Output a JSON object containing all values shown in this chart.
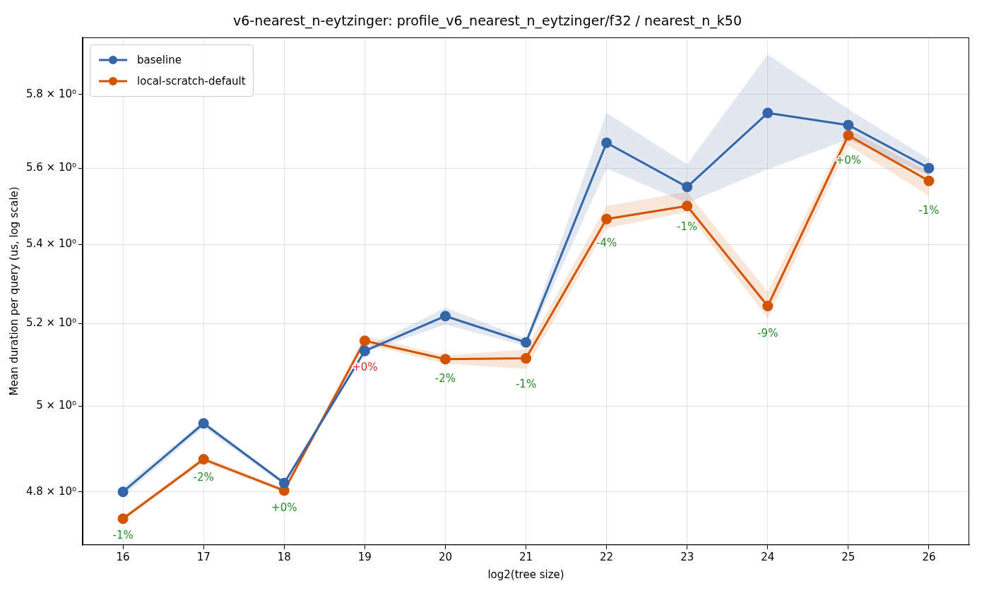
{
  "chart_data": {
    "type": "line",
    "title": "v6-nearest_n-eytzinger: profile_v6_nearest_n_eytzinger/f32 / nearest_n_k50",
    "xlabel": "log2(tree size)",
    "ylabel": "Mean duration per query (us, log scale)",
    "x": [
      16,
      17,
      18,
      19,
      20,
      21,
      22,
      23,
      24,
      25,
      26
    ],
    "series": [
      {
        "name": "baseline",
        "color": "#3465a8",
        "values": [
          4.8,
          4.959,
          4.82,
          5.133,
          5.219,
          5.154,
          5.668,
          5.55,
          5.749,
          5.716,
          5.6
        ],
        "lower": [
          4.79,
          4.95,
          4.815,
          5.13,
          5.198,
          5.145,
          5.599,
          5.508,
          5.597,
          5.677,
          5.581
        ],
        "upper": [
          4.81,
          4.965,
          4.825,
          5.14,
          5.24,
          5.163,
          5.749,
          5.61,
          5.911,
          5.759,
          5.624
        ]
      },
      {
        "name": "local-scratch-default",
        "color": "#d35400",
        "values": [
          4.739,
          4.875,
          4.803,
          5.158,
          5.113,
          5.115,
          5.466,
          5.5,
          5.244,
          5.688,
          5.566
        ],
        "lower": [
          4.735,
          4.868,
          4.798,
          5.15,
          5.102,
          5.089,
          5.442,
          5.484,
          5.213,
          5.661,
          5.527
        ],
        "upper": [
          4.745,
          4.882,
          4.808,
          5.17,
          5.122,
          5.137,
          5.5,
          5.537,
          5.28,
          5.705,
          5.59
        ]
      }
    ],
    "annotations": [
      "-1%",
      "-2%",
      "+0%",
      "+0%",
      "-2%",
      "-1%",
      "-4%",
      "-1%",
      "-9%",
      "+0%",
      "-1%"
    ],
    "xlim": [
      15.5,
      26.5
    ],
    "xticks": [
      16,
      17,
      18,
      19,
      20,
      21,
      22,
      23,
      24,
      25,
      26
    ],
    "ylim": [
      4.68,
      5.96
    ],
    "yticks": [
      {
        "value": 4.8,
        "label": "4.8 × 10⁰"
      },
      {
        "value": 5.0,
        "label": "5 × 10⁰"
      },
      {
        "value": 5.2,
        "label": "5.2 × 10⁰"
      },
      {
        "value": 5.4,
        "label": "5.4 × 10⁰"
      },
      {
        "value": 5.6,
        "label": "5.6 × 10⁰"
      },
      {
        "value": 5.8,
        "label": "5.8 × 10⁰"
      }
    ],
    "log": true,
    "grid": true,
    "legend": "top left",
    "marker": "circle",
    "line_style": "solid"
  }
}
